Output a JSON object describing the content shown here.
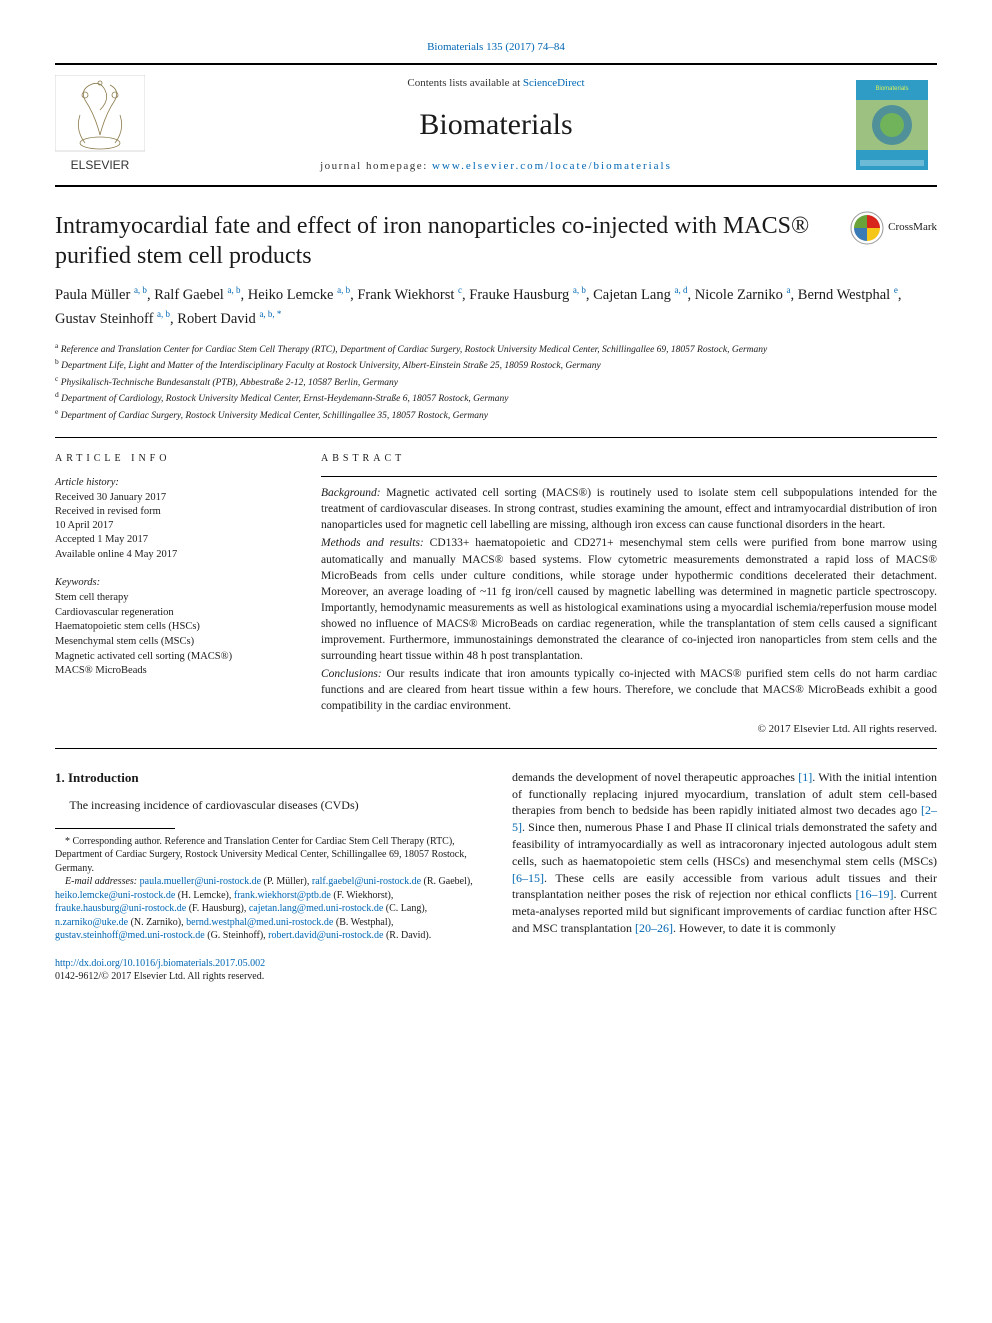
{
  "citation": {
    "journal": "Biomaterials",
    "vol_pages": "135 (2017) 74–84"
  },
  "banner": {
    "sd_prefix": "Contents lists available at ",
    "sd_link": "ScienceDirect",
    "journal": "Biomaterials",
    "homepage_label": "journal homepage: ",
    "homepage_url": "www.elsevier.com/locate/biomaterials",
    "publisher_text": "ELSEVIER",
    "cover_label": "Biomaterials",
    "cover_colors": {
      "top": "#2e9cc4",
      "mid": "#f7e04a",
      "bottom": "#2e9cc4"
    }
  },
  "crossmark_label": "CrossMark",
  "title": "Intramyocardial fate and effect of iron nanoparticles co-injected with MACS® purified stem cell products",
  "authors": [
    {
      "name": "Paula Müller",
      "sup": "a, b"
    },
    {
      "name": "Ralf Gaebel",
      "sup": "a, b"
    },
    {
      "name": "Heiko Lemcke",
      "sup": "a, b"
    },
    {
      "name": "Frank Wiekhorst",
      "sup": "c"
    },
    {
      "name": "Frauke Hausburg",
      "sup": "a, b"
    },
    {
      "name": "Cajetan Lang",
      "sup": "a, d"
    },
    {
      "name": "Nicole Zarniko",
      "sup": "a"
    },
    {
      "name": "Bernd Westphal",
      "sup": "e"
    },
    {
      "name": "Gustav Steinhoff",
      "sup": "a, b"
    },
    {
      "name": "Robert David",
      "sup": "a, b, *"
    }
  ],
  "affiliations": [
    {
      "key": "a",
      "text": "Reference and Translation Center for Cardiac Stem Cell Therapy (RTC), Department of Cardiac Surgery, Rostock University Medical Center, Schillingallee 69, 18057 Rostock, Germany"
    },
    {
      "key": "b",
      "text": "Department Life, Light and Matter of the Interdisciplinary Faculty at Rostock University, Albert-Einstein Straße 25, 18059 Rostock, Germany"
    },
    {
      "key": "c",
      "text": "Physikalisch-Technische Bundesanstalt (PTB), Abbestraße 2-12, 10587 Berlin, Germany"
    },
    {
      "key": "d",
      "text": "Department of Cardiology, Rostock University Medical Center, Ernst-Heydemann-Straße 6, 18057 Rostock, Germany"
    },
    {
      "key": "e",
      "text": "Department of Cardiac Surgery, Rostock University Medical Center, Schillingallee 35, 18057 Rostock, Germany"
    }
  ],
  "article_info": {
    "heading": "ARTICLE INFO",
    "history_label": "Article history:",
    "history": [
      "Received 30 January 2017",
      "Received in revised form",
      "10 April 2017",
      "Accepted 1 May 2017",
      "Available online 4 May 2017"
    ],
    "keywords_label": "Keywords:",
    "keywords": [
      "Stem cell therapy",
      "Cardiovascular regeneration",
      "Haematopoietic stem cells (HSCs)",
      "Mesenchymal stem cells (MSCs)",
      "Magnetic activated cell sorting (MACS®)",
      "MACS® MicroBeads"
    ]
  },
  "abstract": {
    "heading": "ABSTRACT",
    "background_label": "Background:",
    "background": "Magnetic activated cell sorting (MACS®) is routinely used to isolate stem cell subpopulations intended for the treatment of cardiovascular diseases. In strong contrast, studies examining the amount, effect and intramyocardial distribution of iron nanoparticles used for magnetic cell labelling are missing, although iron excess can cause functional disorders in the heart.",
    "methods_label": "Methods and results:",
    "methods": "CD133+ haematopoietic and CD271+ mesenchymal stem cells were purified from bone marrow using automatically and manually MACS® based systems. Flow cytometric measurements demonstrated a rapid loss of MACS® MicroBeads from cells under culture conditions, while storage under hypothermic conditions decelerated their detachment. Moreover, an average loading of ~11 fg iron/cell caused by magnetic labelling was determined in magnetic particle spectroscopy. Importantly, hemodynamic measurements as well as histological examinations using a myocardial ischemia/reperfusion mouse model showed no influence of MACS® MicroBeads on cardiac regeneration, while the transplantation of stem cells caused a significant improvement. Furthermore, immunostainings demonstrated the clearance of co-injected iron nanoparticles from stem cells and the surrounding heart tissue within 48 h post transplantation.",
    "conclusions_label": "Conclusions:",
    "conclusions": "Our results indicate that iron amounts typically co-injected with MACS® purified stem cells do not harm cardiac functions and are cleared from heart tissue within a few hours. Therefore, we conclude that MACS® MicroBeads exhibit a good compatibility in the cardiac environment.",
    "copyright": "© 2017 Elsevier Ltd. All rights reserved."
  },
  "intro": {
    "heading": "1. Introduction",
    "col1_p1": "The increasing incidence of cardiovascular diseases (CVDs)",
    "col2_p1_a": "demands the development of novel therapeutic approaches ",
    "col2_ref1": "[1]",
    "col2_p1_b": ". With the initial intention of functionally replacing injured myocardium, translation of adult stem cell-based therapies from bench to bedside has been rapidly initiated almost two decades ago ",
    "col2_ref2": "[2–5]",
    "col2_p1_c": ". Since then, numerous Phase I and Phase II clinical trials demonstrated the safety and feasibility of intramyocardially as well as intracoronary injected autologous adult stem cells, such as haematopoietic stem cells (HSCs) and mesenchymal stem cells (MSCs) ",
    "col2_ref3": "[6–15]",
    "col2_p1_d": ". These cells are easily accessible from various adult tissues and their transplantation neither poses the risk of rejection nor ethical conflicts ",
    "col2_ref4": "[16–19]",
    "col2_p1_e": ". Current meta-analyses reported mild but significant improvements of cardiac function after HSC and MSC transplantation ",
    "col2_ref5": "[20–26]",
    "col2_p1_f": ". However, to date it is commonly"
  },
  "footnotes": {
    "corr_label": "* Corresponding author.",
    "corr_text": "Reference and Translation Center for Cardiac Stem Cell Therapy (RTC), Department of Cardiac Surgery, Rostock University Medical Center, Schillingallee 69, 18057 Rostock, Germany.",
    "email_label": "E-mail addresses:",
    "emails": [
      {
        "addr": "paula.mueller@uni-rostock.de",
        "who": "(P. Müller)"
      },
      {
        "addr": "ralf.gaebel@uni-rostock.de",
        "who": "(R. Gaebel)"
      },
      {
        "addr": "heiko.lemcke@uni-rostock.de",
        "who": "(H. Lemcke)"
      },
      {
        "addr": "frank.wiekhorst@ptb.de",
        "who": "(F. Wiekhorst)"
      },
      {
        "addr": "frauke.hausburg@uni-rostock.de",
        "who": "(F. Hausburg)"
      },
      {
        "addr": "cajetan.lang@med.uni-rostock.de",
        "who": "(C. Lang)"
      },
      {
        "addr": "n.zarniko@uke.de",
        "who": "(N. Zarniko)"
      },
      {
        "addr": "bernd.westphal@med.uni-rostock.de",
        "who": "(B. Westphal)"
      },
      {
        "addr": "gustav.steinhoff@med.uni-rostock.de",
        "who": "(G. Steinhoff)"
      },
      {
        "addr": "robert.david@uni-rostock.de",
        "who": "(R. David)"
      }
    ]
  },
  "bottom": {
    "doi": "http://dx.doi.org/10.1016/j.biomaterials.2017.05.002",
    "issn_copy": "0142-9612/© 2017 Elsevier Ltd. All rights reserved."
  },
  "colors": {
    "link": "#0066b3",
    "text": "#1a1a1a",
    "rule": "#000000"
  }
}
